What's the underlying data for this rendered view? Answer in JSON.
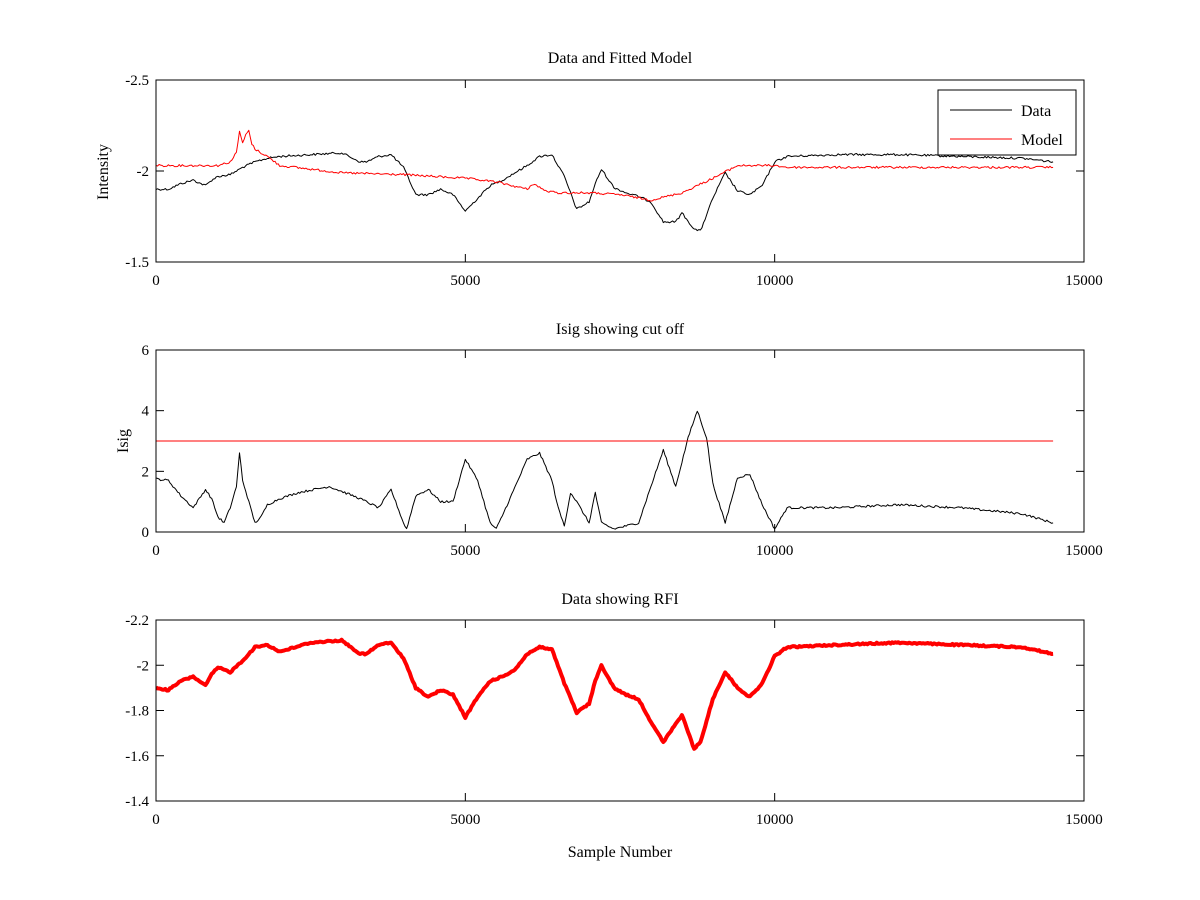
{
  "colors": {
    "data": "#000000",
    "model": "#ff0000",
    "axes": "#000000",
    "background": "#ffffff"
  },
  "chart_data": [
    {
      "type": "line",
      "title": "Data and Fitted Model",
      "xlabel": "",
      "ylabel": "Intensity",
      "xlim": [
        0,
        15000
      ],
      "ylim": [
        -2.5,
        -1.5
      ],
      "y_reversed": true,
      "xticks": [
        0,
        5000,
        10000,
        15000
      ],
      "yticks": [
        -1.5,
        -2,
        -2.5
      ],
      "xtick_labels": [
        "0",
        "5000",
        "10000",
        "15000"
      ],
      "ytick_labels": [
        "-1.5",
        "-2",
        "-2.5"
      ],
      "grid": false,
      "legend": {
        "placement": "top-right",
        "entries": [
          "Data",
          "Model"
        ]
      },
      "series": [
        {
          "name": "Data",
          "color": "#000000",
          "x": [
            0,
            200,
            400,
            600,
            800,
            900,
            1000,
            1200,
            1400,
            1600,
            1800,
            2000,
            2500,
            3000,
            3300,
            3400,
            3600,
            3800,
            4000,
            4200,
            4400,
            4600,
            4800,
            5000,
            5200,
            5400,
            5600,
            5800,
            6000,
            6200,
            6400,
            6600,
            6800,
            7000,
            7100,
            7200,
            7400,
            7600,
            7800,
            8000,
            8200,
            8400,
            8500,
            8700,
            8800,
            9000,
            9200,
            9400,
            9600,
            9800,
            10000,
            10200,
            11000,
            12000,
            13000,
            14000,
            14500
          ],
          "values": [
            -1.9,
            -1.9,
            -1.93,
            -1.95,
            -1.92,
            -1.95,
            -1.97,
            -1.98,
            -2.02,
            -2.05,
            -2.07,
            -2.08,
            -2.09,
            -2.1,
            -2.05,
            -2.05,
            -2.08,
            -2.09,
            -2.02,
            -1.87,
            -1.87,
            -1.9,
            -1.87,
            -1.78,
            -1.85,
            -1.92,
            -1.95,
            -1.99,
            -2.03,
            -2.08,
            -2.09,
            -1.97,
            -1.79,
            -1.83,
            -1.93,
            -2.01,
            -1.91,
            -1.88,
            -1.86,
            -1.83,
            -1.72,
            -1.72,
            -1.77,
            -1.68,
            -1.67,
            -1.85,
            -1.99,
            -1.89,
            -1.87,
            -1.92,
            -2.05,
            -2.08,
            -2.09,
            -2.09,
            -2.08,
            -2.07,
            -2.05
          ]
        },
        {
          "name": "Model",
          "color": "#ff0000",
          "x": [
            0,
            500,
            1000,
            1200,
            1300,
            1350,
            1400,
            1450,
            1500,
            1550,
            1600,
            1800,
            2000,
            2500,
            3000,
            4000,
            5000,
            5500,
            6000,
            6100,
            6200,
            6300,
            6500,
            7000,
            7500,
            8000,
            8500,
            9000,
            9400,
            9800,
            10000,
            10200,
            11000,
            12000,
            13000,
            14000,
            14500
          ],
          "values": [
            -2.03,
            -2.03,
            -2.03,
            -2.05,
            -2.1,
            -2.22,
            -2.15,
            -2.2,
            -2.22,
            -2.15,
            -2.12,
            -2.08,
            -2.03,
            -2.01,
            -1.99,
            -1.98,
            -1.96,
            -1.94,
            -1.9,
            -1.93,
            -1.91,
            -1.89,
            -1.88,
            -1.88,
            -1.87,
            -1.84,
            -1.88,
            -1.96,
            -2.03,
            -2.03,
            -2.03,
            -2.02,
            -2.02,
            -2.02,
            -2.02,
            -2.02,
            -2.02
          ]
        }
      ]
    },
    {
      "type": "line",
      "title": "Isig showing cut off",
      "xlabel": "",
      "ylabel": "Isig",
      "xlim": [
        0,
        15000
      ],
      "ylim": [
        0,
        6
      ],
      "y_reversed": false,
      "xticks": [
        0,
        5000,
        10000,
        15000
      ],
      "yticks": [
        0,
        2,
        4,
        6
      ],
      "xtick_labels": [
        "0",
        "5000",
        "10000",
        "15000"
      ],
      "ytick_labels": [
        "0",
        "2",
        "4",
        "6"
      ],
      "grid": false,
      "series": [
        {
          "color": "#000000",
          "x": [
            0,
            200,
            400,
            600,
            800,
            900,
            1000,
            1100,
            1200,
            1300,
            1350,
            1400,
            1500,
            1600,
            1700,
            1800,
            2000,
            2300,
            2800,
            3300,
            3600,
            3800,
            4000,
            4050,
            4200,
            4400,
            4600,
            4800,
            5000,
            5200,
            5400,
            5500,
            5700,
            6000,
            6200,
            6400,
            6500,
            6600,
            6700,
            6800,
            7000,
            7100,
            7200,
            7400,
            7600,
            7800,
            8000,
            8200,
            8400,
            8600,
            8750,
            8900,
            9000,
            9200,
            9400,
            9600,
            9800,
            10000,
            10200,
            11000,
            12000,
            13000,
            14000,
            14500
          ],
          "values": [
            1.75,
            1.7,
            1.2,
            0.8,
            1.4,
            1.1,
            0.5,
            0.3,
            0.8,
            1.5,
            2.6,
            1.7,
            1.0,
            0.3,
            0.5,
            0.9,
            1.1,
            1.3,
            1.5,
            1.1,
            0.8,
            1.4,
            0.3,
            0.1,
            1.2,
            1.4,
            1.0,
            1.0,
            2.4,
            1.7,
            0.3,
            0.1,
            1.0,
            2.4,
            2.6,
            1.7,
            0.8,
            0.2,
            1.3,
            1.0,
            0.3,
            1.3,
            0.3,
            0.1,
            0.2,
            0.3,
            1.5,
            2.7,
            1.5,
            3.1,
            4.0,
            3.1,
            1.6,
            0.3,
            1.8,
            1.9,
            0.9,
            0.1,
            0.8,
            0.8,
            0.9,
            0.8,
            0.6,
            0.3
          ]
        },
        {
          "color": "#ff0000",
          "x": [
            0,
            14500
          ],
          "values": [
            3,
            3
          ]
        }
      ]
    },
    {
      "type": "line",
      "title": "Data showing RFI",
      "xlabel": "Sample Number",
      "ylabel": "",
      "xlim": [
        0,
        15000
      ],
      "ylim": [
        -2.2,
        -1.4
      ],
      "y_reversed": true,
      "xticks": [
        0,
        5000,
        10000,
        15000
      ],
      "yticks": [
        -1.4,
        -1.6,
        -1.8,
        -2,
        -2.2
      ],
      "xtick_labels": [
        "0",
        "5000",
        "10000",
        "15000"
      ],
      "ytick_labels": [
        "-1.4",
        "-1.6",
        "-1.8",
        "-2",
        "-2.2"
      ],
      "grid": false,
      "series": [
        {
          "color": "#ff0000",
          "x": [
            0,
            200,
            400,
            600,
            800,
            900,
            1000,
            1200,
            1400,
            1600,
            1800,
            2000,
            2500,
            3000,
            3300,
            3400,
            3600,
            3800,
            4000,
            4200,
            4400,
            4600,
            4800,
            5000,
            5200,
            5400,
            5600,
            5800,
            6000,
            6200,
            6400,
            6600,
            6800,
            7000,
            7100,
            7200,
            7400,
            7600,
            7800,
            8000,
            8200,
            8400,
            8500,
            8700,
            8800,
            9000,
            9200,
            9400,
            9600,
            9800,
            10000,
            10200,
            11000,
            12000,
            13000,
            14000,
            14500
          ],
          "values": [
            -1.9,
            -1.89,
            -1.93,
            -1.95,
            -1.91,
            -1.96,
            -1.99,
            -1.97,
            -2.02,
            -2.08,
            -2.09,
            -2.06,
            -2.1,
            -2.11,
            -2.05,
            -2.05,
            -2.09,
            -2.1,
            -2.03,
            -1.9,
            -1.86,
            -1.89,
            -1.87,
            -1.77,
            -1.86,
            -1.93,
            -1.95,
            -1.98,
            -2.05,
            -2.08,
            -2.07,
            -1.92,
            -1.79,
            -1.83,
            -1.93,
            -2.0,
            -1.9,
            -1.87,
            -1.85,
            -1.75,
            -1.66,
            -1.74,
            -1.78,
            -1.63,
            -1.66,
            -1.85,
            -1.97,
            -1.9,
            -1.86,
            -1.92,
            -2.04,
            -2.08,
            -2.09,
            -2.1,
            -2.09,
            -2.08,
            -2.05
          ]
        }
      ]
    }
  ]
}
